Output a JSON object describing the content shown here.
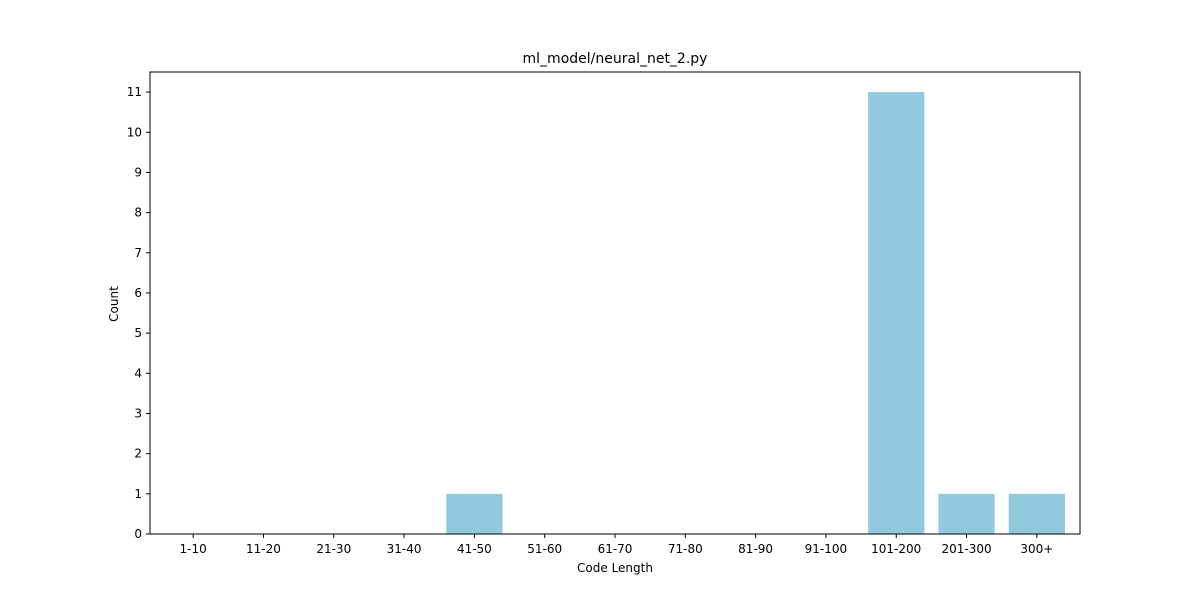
{
  "chart_data": {
    "type": "bar",
    "title": "ml_model/neural_net_2.py",
    "xlabel": "Code Length",
    "ylabel": "Count",
    "categories": [
      "1-10",
      "11-20",
      "21-30",
      "31-40",
      "41-50",
      "51-60",
      "61-70",
      "71-80",
      "81-90",
      "91-100",
      "101-200",
      "201-300",
      "300+"
    ],
    "values": [
      0,
      0,
      0,
      0,
      1,
      0,
      0,
      0,
      0,
      0,
      11,
      1,
      1
    ],
    "ylim": [
      0,
      11.5
    ],
    "yticks": [
      0,
      1,
      2,
      3,
      4,
      5,
      6,
      7,
      8,
      9,
      10,
      11
    ],
    "grid": false,
    "legend": "none",
    "bar_color": "#92c9de"
  }
}
